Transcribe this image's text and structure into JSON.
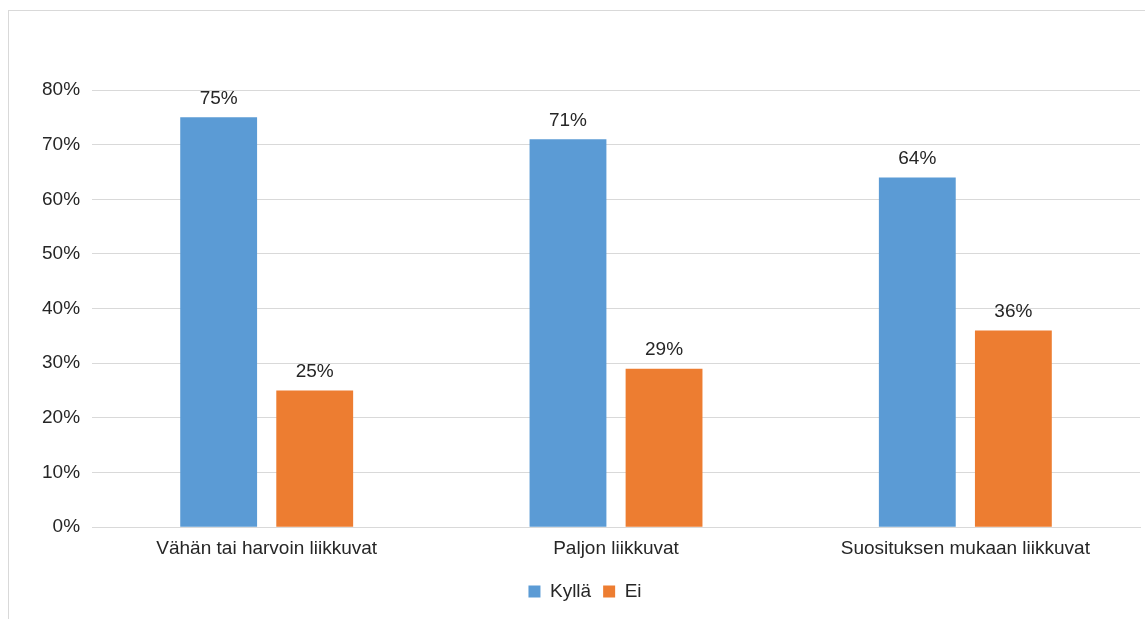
{
  "chart_data": {
    "type": "bar",
    "categories": [
      "Vähän tai harvoin liikkuvat",
      "Paljon liikkuvat",
      "Suosituksen mukaan liikkuvat"
    ],
    "series": [
      {
        "name": "Kyllä",
        "color": "#5b9bd5",
        "values": [
          75,
          71,
          64
        ],
        "value_labels": [
          "75%",
          "71%",
          "64%"
        ]
      },
      {
        "name": "Ei",
        "color": "#ed7d31",
        "values": [
          25,
          29,
          36
        ],
        "value_labels": [
          "25%",
          "29%",
          "36%"
        ]
      }
    ],
    "ylim": [
      0,
      80
    ],
    "yticks": [
      {
        "value": 0,
        "label": "0%"
      },
      {
        "value": 10,
        "label": "10%"
      },
      {
        "value": 20,
        "label": "20%"
      },
      {
        "value": 30,
        "label": "30%"
      },
      {
        "value": 40,
        "label": "40%"
      },
      {
        "value": 50,
        "label": "50%"
      },
      {
        "value": 60,
        "label": "60%"
      },
      {
        "value": 70,
        "label": "70%"
      },
      {
        "value": 80,
        "label": "80%"
      }
    ],
    "grid": "y",
    "legend": "bottom"
  }
}
